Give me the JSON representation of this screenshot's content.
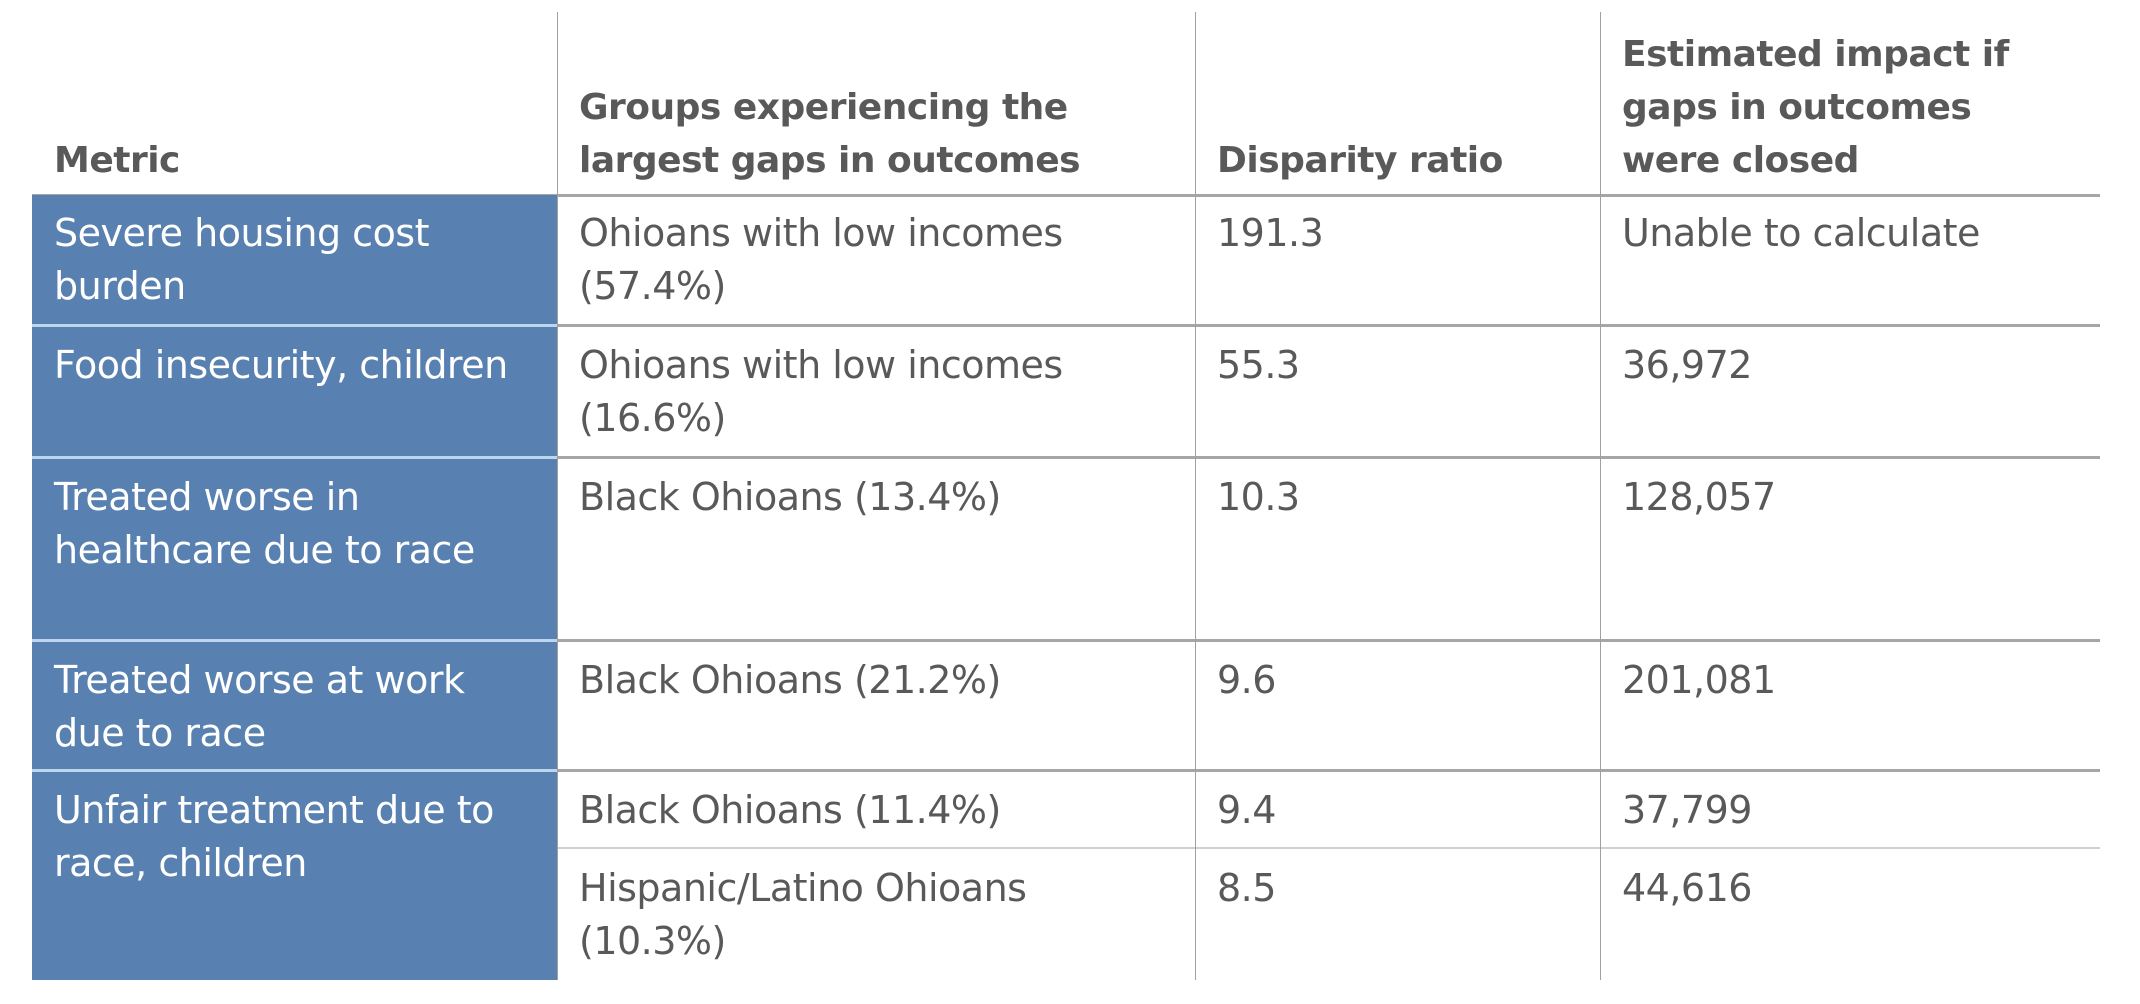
{
  "headers": {
    "metric": "Metric",
    "groups": "Groups experiencing the largest gaps in outcomes",
    "ratio": "Disparity ratio",
    "impact": "Estimated impact if gaps in outcomes were closed"
  },
  "colors": {
    "metric_fill": "#5880b0",
    "metric_text": "#ffffff",
    "text": "#595959",
    "rule": "#a6a6a6"
  },
  "rows": [
    {
      "metric": "Severe housing cost burden",
      "group": "Ohioans with low incomes (57.4%)",
      "ratio": "191.3",
      "impact": "Unable to calculate"
    },
    {
      "metric": "Food insecurity, children",
      "group": "Ohioans with low incomes (16.6%)",
      "ratio": "55.3",
      "impact": "36,972"
    },
    {
      "metric": "Treated worse in healthcare due to race",
      "group": "Black Ohioans (13.4%)",
      "ratio": "10.3",
      "impact": "128,057"
    },
    {
      "metric": "Treated worse at work due to race",
      "group": "Black Ohioans (21.2%)",
      "ratio": "9.6",
      "impact": "201,081"
    },
    {
      "metric": "Unfair treatment due to race, children",
      "subrows": [
        {
          "group": "Black Ohioans (11.4%)",
          "ratio": "9.4",
          "impact": "37,799"
        },
        {
          "group": "Hispanic/Latino Ohioans (10.3%)",
          "ratio": "8.5",
          "impact": "44,616"
        }
      ]
    }
  ]
}
